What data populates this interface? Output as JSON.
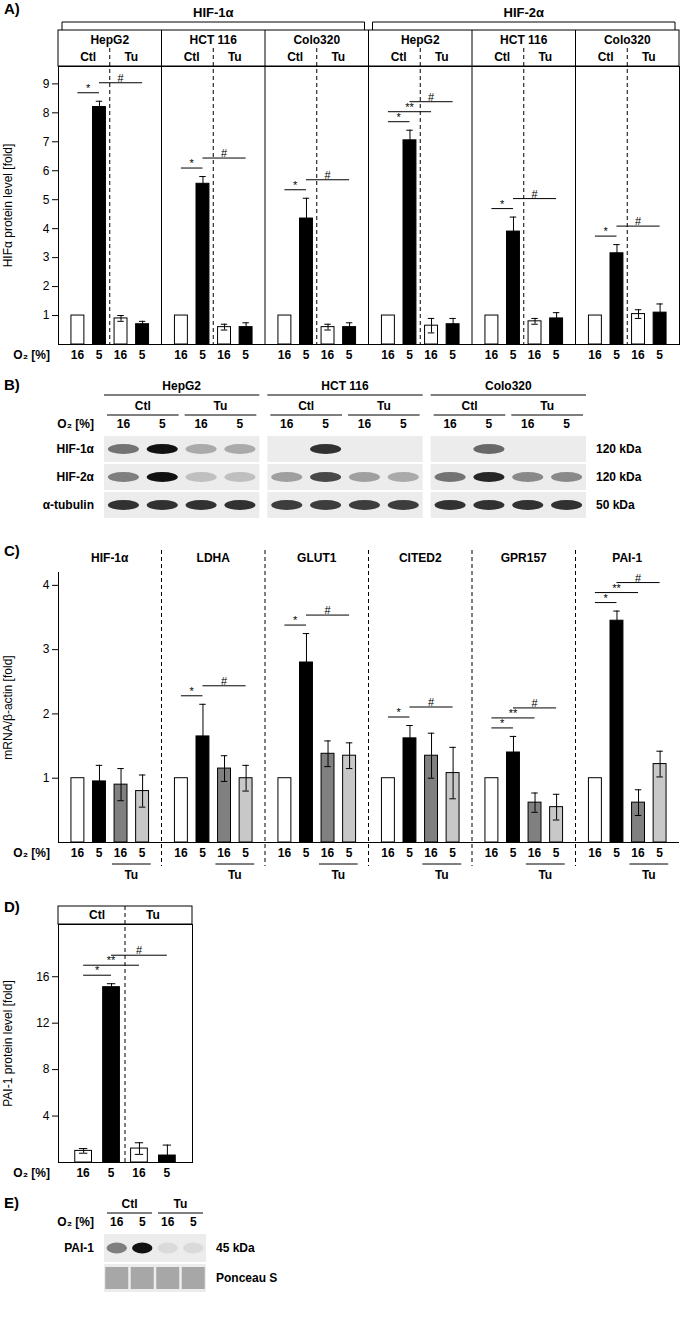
{
  "chart_data": [
    {
      "type": "bar",
      "title": "A)",
      "ylabel": "HIFα protein level [fold]",
      "xlabel": "O₂ [%]",
      "ylim": [
        0,
        9.6
      ],
      "yticks": [
        1,
        2,
        3,
        4,
        5,
        6,
        7,
        8,
        9
      ],
      "categories": [
        "16",
        "5",
        "16",
        "5"
      ],
      "treatment": [
        "Ctl",
        "Ctl",
        "Tu",
        "Tu"
      ],
      "colors": [
        "#ffffff",
        "#000000",
        "#ffffff",
        "#000000"
      ],
      "super_groups": [
        {
          "label": "HIF-1α",
          "from": 0,
          "to": 2
        },
        {
          "label": "HIF-2α",
          "from": 3,
          "to": 5
        }
      ],
      "groups": [
        {
          "name": "HepG2",
          "values": [
            1,
            8.2,
            0.9,
            0.7
          ],
          "errors": [
            0,
            0.2,
            0.1,
            0.1
          ],
          "annotations": [
            {
              "label": "*",
              "between": [
                0,
                1
              ]
            },
            {
              "label": "#",
              "between": [
                1,
                3
              ]
            }
          ]
        },
        {
          "name": "HCT 116",
          "values": [
            1,
            5.55,
            0.6,
            0.6
          ],
          "errors": [
            0,
            0.25,
            0.1,
            0.15
          ],
          "annotations": [
            {
              "label": "*",
              "between": [
                0,
                1
              ]
            },
            {
              "label": "#",
              "between": [
                1,
                3
              ]
            }
          ]
        },
        {
          "name": "Colo320",
          "values": [
            1,
            4.35,
            0.6,
            0.6
          ],
          "errors": [
            0,
            0.7,
            0.1,
            0.15
          ],
          "annotations": [
            {
              "label": "*",
              "between": [
                0,
                1
              ]
            },
            {
              "label": "#",
              "between": [
                1,
                3
              ]
            }
          ]
        },
        {
          "name": "HepG2",
          "values": [
            1,
            7.05,
            0.65,
            0.7
          ],
          "errors": [
            0,
            0.35,
            0.25,
            0.2
          ],
          "annotations": [
            {
              "label": "*",
              "between": [
                0,
                1
              ]
            },
            {
              "label": "**",
              "between": [
                0,
                2
              ]
            },
            {
              "label": "#",
              "between": [
                1,
                3
              ]
            }
          ]
        },
        {
          "name": "HCT 116",
          "values": [
            1,
            3.9,
            0.8,
            0.9
          ],
          "errors": [
            0,
            0.5,
            0.1,
            0.2
          ],
          "annotations": [
            {
              "label": "*",
              "between": [
                0,
                1
              ]
            },
            {
              "label": "#",
              "between": [
                1,
                3
              ]
            }
          ]
        },
        {
          "name": "Colo320",
          "values": [
            1,
            3.15,
            1.05,
            1.1
          ],
          "errors": [
            0,
            0.3,
            0.15,
            0.3
          ],
          "annotations": [
            {
              "label": "*",
              "between": [
                0,
                1
              ]
            },
            {
              "label": "#",
              "between": [
                1,
                3
              ]
            }
          ]
        }
      ]
    },
    {
      "type": "bar",
      "title": "C)",
      "ylabel": "mRNA/β-actin [fold]",
      "xlabel": "O₂ [%]",
      "ylim": [
        0,
        4.2
      ],
      "yticks": [
        1,
        2,
        3,
        4
      ],
      "categories": [
        "16",
        "5",
        "16",
        "5"
      ],
      "treatment": [
        null,
        null,
        "Tu",
        "Tu"
      ],
      "colors": [
        "#ffffff",
        "#000000",
        "#808080",
        "#c8c8c8"
      ],
      "groups": [
        {
          "name": "HIF-1α",
          "values": [
            1,
            0.95,
            0.9,
            0.8
          ],
          "errors": [
            0,
            0.25,
            0.25,
            0.25
          ],
          "annotations": []
        },
        {
          "name": "LDHA",
          "values": [
            1,
            1.65,
            1.15,
            1.0
          ],
          "errors": [
            0,
            0.5,
            0.2,
            0.2
          ],
          "annotations": [
            {
              "label": "*",
              "between": [
                0,
                1
              ]
            },
            {
              "label": "#",
              "between": [
                1,
                3
              ]
            }
          ]
        },
        {
          "name": "GLUT1",
          "values": [
            1,
            2.8,
            1.38,
            1.35
          ],
          "errors": [
            0,
            0.45,
            0.2,
            0.2
          ],
          "annotations": [
            {
              "label": "*",
              "between": [
                0,
                1
              ]
            },
            {
              "label": "#",
              "between": [
                1,
                3
              ]
            }
          ]
        },
        {
          "name": "CITED2",
          "values": [
            1,
            1.62,
            1.35,
            1.08
          ],
          "errors": [
            0,
            0.2,
            0.35,
            0.4
          ],
          "annotations": [
            {
              "label": "*",
              "between": [
                0,
                1
              ]
            },
            {
              "label": "#",
              "between": [
                1,
                3
              ]
            }
          ]
        },
        {
          "name": "GPR157",
          "values": [
            1,
            1.4,
            0.62,
            0.55
          ],
          "errors": [
            0,
            0.25,
            0.15,
            0.2
          ],
          "annotations": [
            {
              "label": "*",
              "between": [
                0,
                1
              ]
            },
            {
              "label": "**",
              "between": [
                0,
                2
              ]
            },
            {
              "label": "#",
              "between": [
                1,
                3
              ]
            }
          ]
        },
        {
          "name": "PAI-1",
          "values": [
            1,
            3.45,
            0.62,
            1.22
          ],
          "errors": [
            0,
            0.15,
            0.2,
            0.2
          ],
          "annotations": [
            {
              "label": "*",
              "between": [
                0,
                1
              ]
            },
            {
              "label": "**",
              "between": [
                0,
                2
              ]
            },
            {
              "label": "#",
              "between": [
                1,
                3
              ]
            }
          ]
        }
      ]
    },
    {
      "type": "bar",
      "title": "D)",
      "ylabel": "PAI-1 protein level [fold]",
      "xlabel": "O₂ [%]",
      "ylim": [
        0,
        20.5
      ],
      "yticks": [
        4,
        8,
        12,
        16
      ],
      "categories": [
        "16",
        "5",
        "16",
        "5"
      ],
      "treatment": [
        "Ctl",
        "Ctl",
        "Tu",
        "Tu"
      ],
      "colors": [
        "#ffffff",
        "#000000",
        "#ffffff",
        "#000000"
      ],
      "groups": [
        {
          "name": null,
          "values": [
            1,
            15.1,
            1.2,
            0.6
          ],
          "errors": [
            0.2,
            0.3,
            0.5,
            0.9
          ],
          "annotations": [
            {
              "label": "*",
              "between": [
                0,
                1
              ]
            },
            {
              "label": "**",
              "between": [
                0,
                2
              ]
            },
            {
              "label": "#",
              "between": [
                1,
                3
              ]
            }
          ]
        }
      ]
    }
  ],
  "blots": [
    {
      "title": "B)",
      "xlabel": "O₂ [%]",
      "lanes": [
        "16",
        "5",
        "16",
        "5"
      ],
      "columns": [
        {
          "name": "HepG2",
          "treatments": [
            "Ctl",
            "Tu"
          ]
        },
        {
          "name": "HCT 116",
          "treatments": [
            "Ctl",
            "Tu"
          ]
        },
        {
          "name": "Colo320",
          "treatments": [
            "Ctl",
            "Tu"
          ]
        }
      ],
      "rows": [
        {
          "label": "HIF-1α",
          "right_label": "120 kDa",
          "intensity": [
            [
              0.55,
              1,
              0.3,
              0.3
            ],
            [
              0,
              0.85,
              0,
              0
            ],
            [
              0,
              0.6,
              0,
              0
            ]
          ]
        },
        {
          "label": "HIF-2α",
          "right_label": "120 kDa",
          "intensity": [
            [
              0.5,
              1,
              0.2,
              0.2
            ],
            [
              0.35,
              0.75,
              0.35,
              0.3
            ],
            [
              0.55,
              0.9,
              0.45,
              0.45
            ]
          ]
        },
        {
          "label": "α-tubulin",
          "right_label": "50 kDa",
          "intensity": [
            [
              0.85,
              0.85,
              0.85,
              0.85
            ],
            [
              0.8,
              0.8,
              0.8,
              0.8
            ],
            [
              0.85,
              0.85,
              0.85,
              0.85
            ]
          ]
        }
      ]
    },
    {
      "title": "E)",
      "xlabel": "O₂ [%]",
      "lanes": [
        "16",
        "5",
        "16",
        "5"
      ],
      "columns": [
        {
          "name": null,
          "treatments": [
            "Ctl",
            "Tu"
          ]
        }
      ],
      "rows": [
        {
          "label": "PAI-1",
          "right_label": "45 kDa",
          "intensity": [
            [
              0.5,
              1,
              0.08,
              0.08
            ]
          ]
        },
        {
          "label": null,
          "right_label": "Ponceau S",
          "intensity": [
            [
              0.45,
              0.45,
              0.45,
              0.45
            ]
          ]
        }
      ]
    }
  ]
}
